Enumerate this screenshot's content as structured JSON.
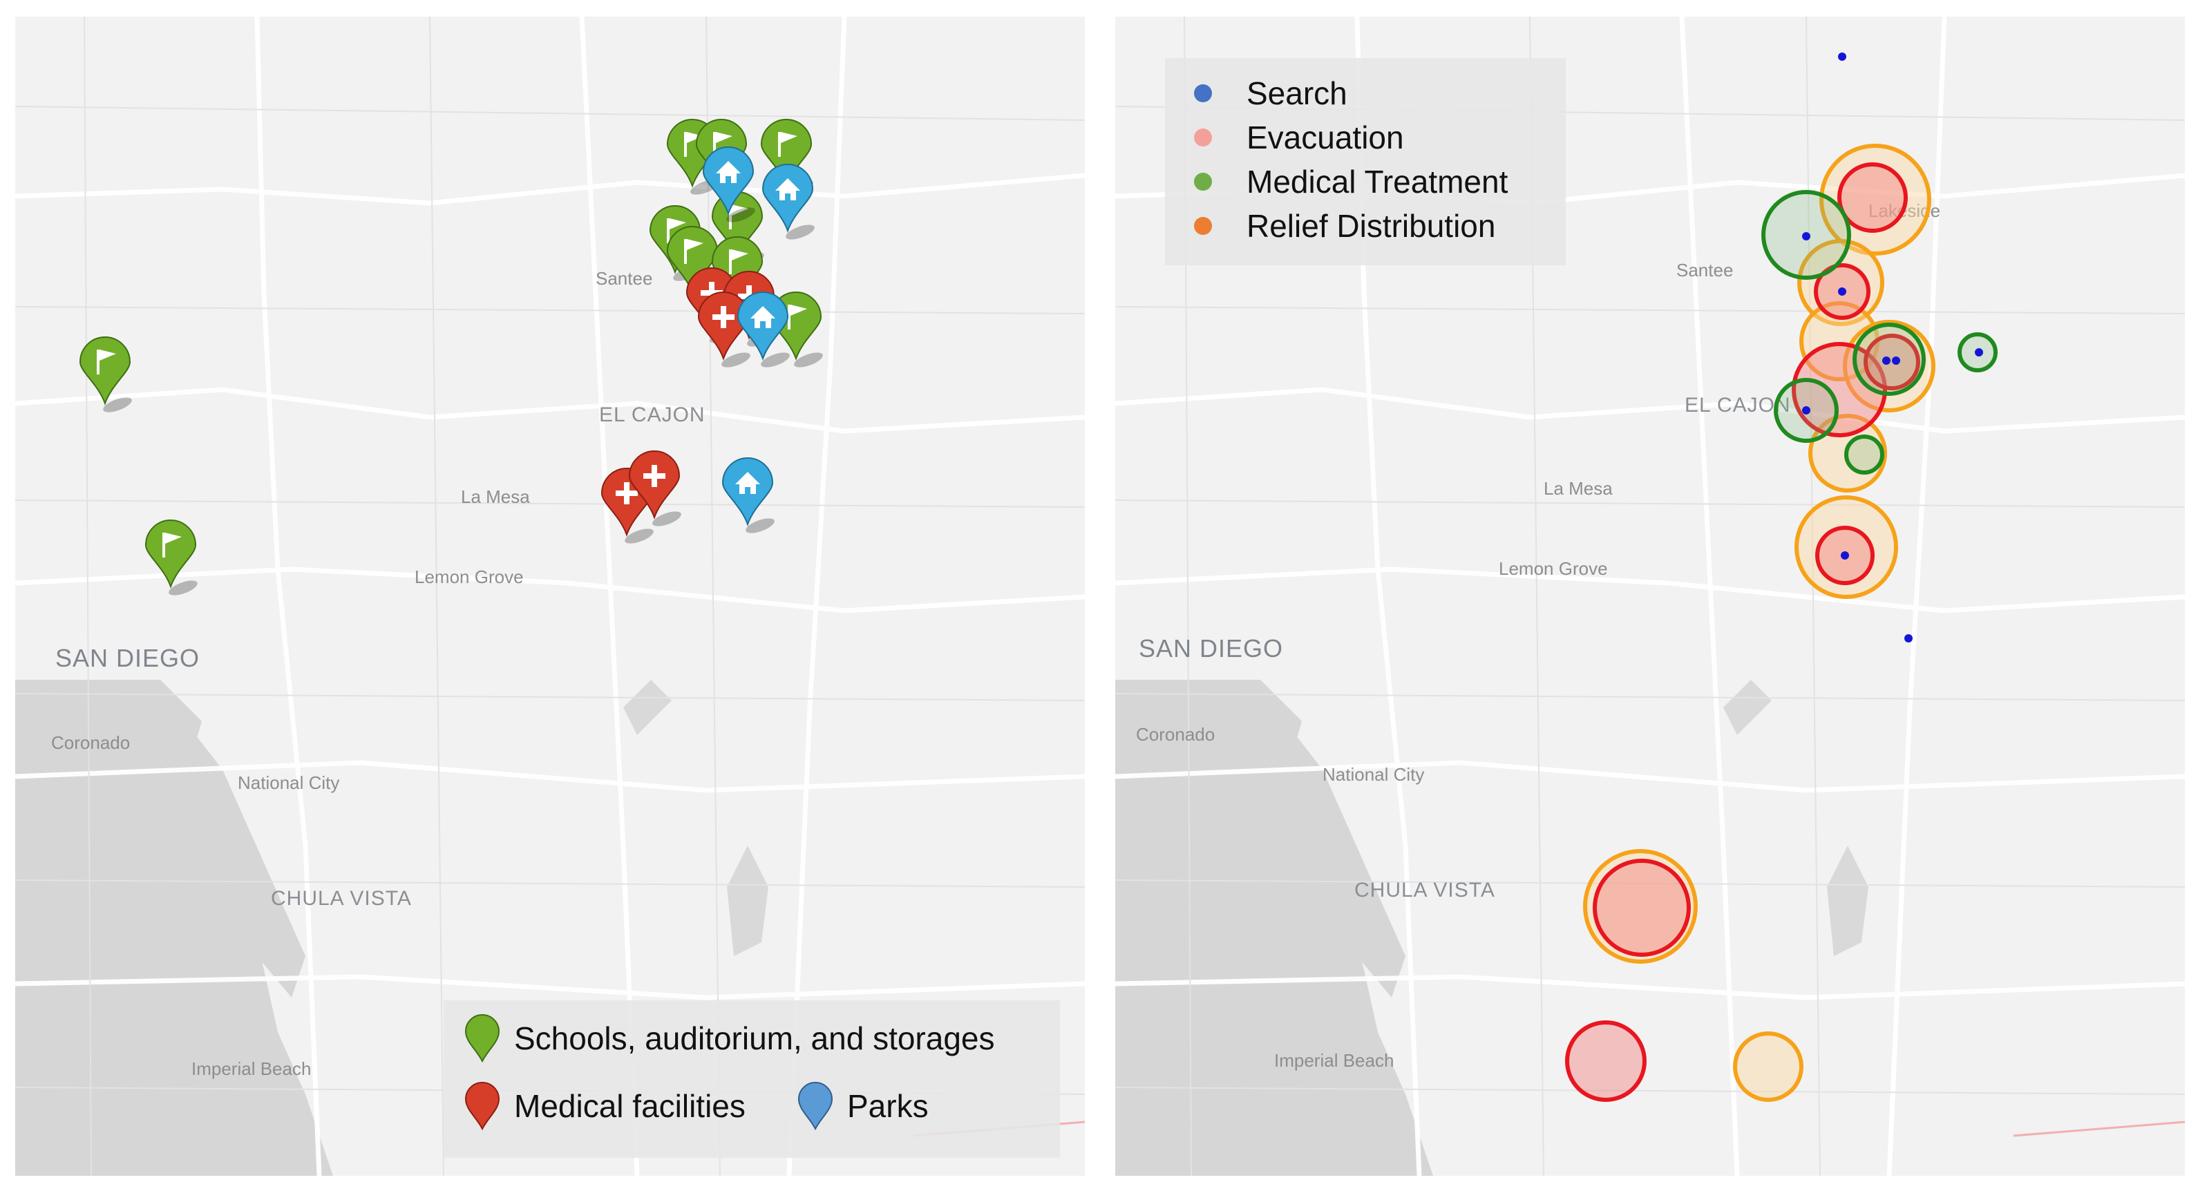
{
  "places": {
    "santee": "Santee",
    "el_cajon": "EL CAJON",
    "la_mesa": "La Mesa",
    "lemon_grove": "Lemon Grove",
    "san_diego": "SAN DIEGO",
    "coronado": "Coronado",
    "national_city": "National City",
    "chula_vista": "CHULA VISTA",
    "imperial_beach": "Imperial Beach",
    "lakeside": "Lakeside"
  },
  "left_legend": {
    "schools": "Schools, auditorium, and storages",
    "medical": "Medical facilities",
    "parks": "Parks"
  },
  "right_legend": {
    "search": "Search",
    "evacuation": "Evacuation",
    "medical_treatment": "Medical Treatment",
    "relief_distribution": "Relief Distribution"
  },
  "colors": {
    "schools_marker": "#72b02a",
    "medical_marker": "#d63e2a",
    "parks_marker": "#38aadd",
    "search": "#1515d8",
    "evacuation_fill": "#f5a3a3",
    "evacuation_stroke": "#e8161f",
    "medical_treatment": "#1f8a1f",
    "relief_distribution": "#f6a21a",
    "legend_search": "#4472c4",
    "legend_evacuation": "#f4a09a",
    "legend_medical": "#70ad47",
    "legend_relief": "#ed7d31"
  },
  "markers": {
    "schools": [
      {
        "icon": "flag-icon"
      },
      {
        "icon": "flag-icon"
      },
      {
        "icon": "flag-icon"
      },
      {
        "icon": "flag-icon"
      },
      {
        "icon": "flag-icon"
      },
      {
        "icon": "flag-icon"
      },
      {
        "icon": "flag-icon"
      },
      {
        "icon": "flag-icon"
      },
      {
        "icon": "flag-icon"
      },
      {
        "icon": "flag-icon"
      }
    ],
    "medical": [
      {
        "icon": "plus-icon"
      },
      {
        "icon": "plus-icon"
      },
      {
        "icon": "plus-icon"
      },
      {
        "icon": "plus-icon"
      },
      {
        "icon": "plus-icon"
      }
    ],
    "parks": [
      {
        "icon": "home-icon"
      },
      {
        "icon": "home-icon"
      },
      {
        "icon": "home-icon"
      },
      {
        "icon": "home-icon"
      }
    ]
  }
}
